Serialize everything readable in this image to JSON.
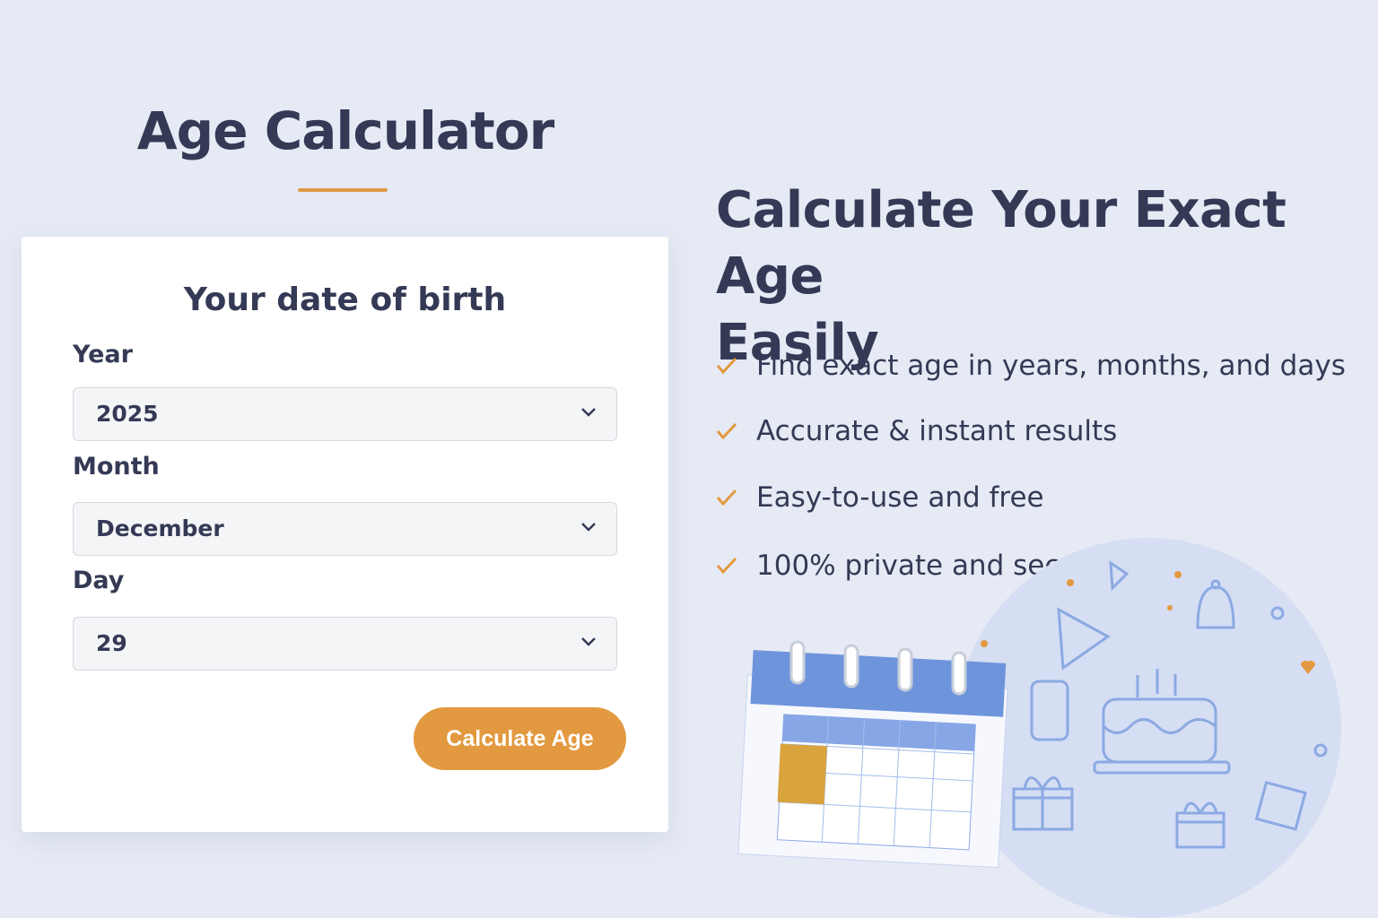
{
  "header": {
    "title": "Age Calculator"
  },
  "form": {
    "heading": "Your date of birth",
    "year": {
      "label": "Year",
      "value": "2025"
    },
    "month": {
      "label": "Month",
      "value": "December"
    },
    "day": {
      "label": "Day",
      "value": "29"
    },
    "submit_label": "Calculate Age"
  },
  "hero": {
    "line1": "Calculate Your Exact Age",
    "line2": "Easily",
    "features": [
      "Find exact age in years, months, and days",
      "Accurate & instant results",
      "Easy-to-use and free",
      "100% private and secure"
    ]
  },
  "colors": {
    "accent": "#e3993f",
    "text": "#343a55",
    "background": "#e6eaf5",
    "illustration": "#7b9de0"
  },
  "icons": [
    "check-icon",
    "chevron-down-icon",
    "calendar-icon",
    "birthday-cake-icon",
    "gift-icon",
    "party-hat-icon",
    "bell-icon"
  ]
}
